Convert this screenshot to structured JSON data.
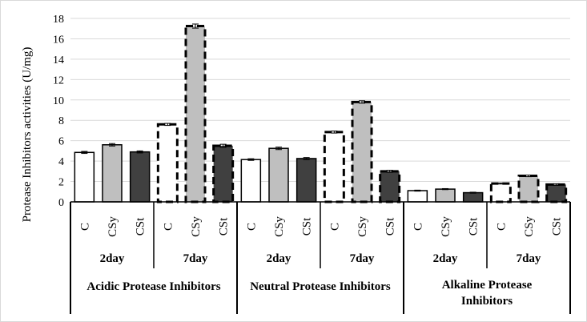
{
  "chart_data": {
    "type": "bar",
    "ylabel": "Protease Inhibitors activities (U/mg)",
    "ylim": [
      0,
      18
    ],
    "yticks": [
      0,
      2,
      4,
      6,
      8,
      10,
      12,
      14,
      16,
      18
    ],
    "grid": true,
    "groups": [
      {
        "label": "Acidic Protease Inhibitors",
        "periods": [
          {
            "label": "2day",
            "bars": [
              {
                "category": "C",
                "value": 4.85,
                "error": 0.1
              },
              {
                "category": "CSy",
                "value": 5.6,
                "error": 0.12
              },
              {
                "category": "CSt",
                "value": 4.9,
                "error": 0.1
              }
            ]
          },
          {
            "label": "7day",
            "bars": [
              {
                "category": "C",
                "value": 7.6,
                "error": 0.1
              },
              {
                "category": "CSy",
                "value": 17.25,
                "error": 0.2
              },
              {
                "category": "CSt",
                "value": 5.5,
                "error": 0.15
              }
            ]
          }
        ]
      },
      {
        "label": "Neutral Protease Inhibitors",
        "periods": [
          {
            "label": "2day",
            "bars": [
              {
                "category": "C",
                "value": 4.15,
                "error": 0.08
              },
              {
                "category": "CSy",
                "value": 5.25,
                "error": 0.12
              },
              {
                "category": "CSt",
                "value": 4.25,
                "error": 0.1
              }
            ]
          },
          {
            "label": "7day",
            "bars": [
              {
                "category": "C",
                "value": 6.85,
                "error": 0.1
              },
              {
                "category": "CSy",
                "value": 9.8,
                "error": 0.12
              },
              {
                "category": "CSt",
                "value": 3.0,
                "error": 0.1
              }
            ]
          }
        ]
      },
      {
        "label": "Alkaline Protease Inhibitors",
        "label_lines": [
          "Alkaline Protease",
          "Inhibitors"
        ],
        "periods": [
          {
            "label": "2day",
            "bars": [
              {
                "category": "C",
                "value": 1.1,
                "error": 0.05
              },
              {
                "category": "CSy",
                "value": 1.25,
                "error": 0.05
              },
              {
                "category": "CSt",
                "value": 0.9,
                "error": 0.05
              }
            ]
          },
          {
            "label": "7day",
            "bars": [
              {
                "category": "C",
                "value": 1.8,
                "error": 0.05
              },
              {
                "category": "CSy",
                "value": 2.55,
                "error": 0.08
              },
              {
                "category": "CSt",
                "value": 1.7,
                "error": 0.08
              }
            ]
          }
        ]
      }
    ]
  },
  "colors": {
    "C": "#ffffff",
    "CSy": "#bfbfbf",
    "CSt": "#404040",
    "stroke": "#000000",
    "grid": "#d9d9d9"
  }
}
